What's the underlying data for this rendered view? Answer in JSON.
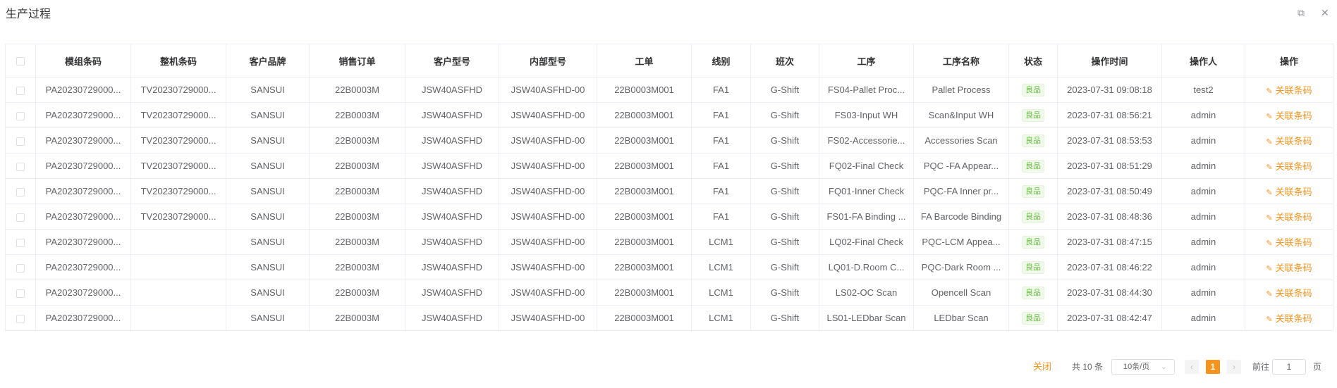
{
  "title": "生产过程",
  "window": {
    "restore_icon": "restore-icon",
    "close_icon": "close-icon"
  },
  "columns": [
    "",
    "模组条码",
    "整机条码",
    "客户品牌",
    "销售订单",
    "客户型号",
    "内部型号",
    "工单",
    "线别",
    "班次",
    "工序",
    "工序名称",
    "状态",
    "操作时间",
    "操作人",
    "操作"
  ],
  "rows": [
    [
      "PA20230729000...",
      "TV20230729000...",
      "SANSUI",
      "22B0003M",
      "JSW40ASFHD",
      "JSW40ASFHD-00",
      "22B0003M001",
      "FA1",
      "G-Shift",
      "FS04-Pallet Proc...",
      "Pallet Process",
      "良品",
      "2023-07-31 09:08:18",
      "test2",
      "关联条码"
    ],
    [
      "PA20230729000...",
      "TV20230729000...",
      "SANSUI",
      "22B0003M",
      "JSW40ASFHD",
      "JSW40ASFHD-00",
      "22B0003M001",
      "FA1",
      "G-Shift",
      "FS03-Input WH",
      "Scan&Input WH",
      "良品",
      "2023-07-31 08:56:21",
      "admin",
      "关联条码"
    ],
    [
      "PA20230729000...",
      "TV20230729000...",
      "SANSUI",
      "22B0003M",
      "JSW40ASFHD",
      "JSW40ASFHD-00",
      "22B0003M001",
      "FA1",
      "G-Shift",
      "FS02-Accessorie...",
      "Accessories Scan",
      "良品",
      "2023-07-31 08:53:53",
      "admin",
      "关联条码"
    ],
    [
      "PA20230729000...",
      "TV20230729000...",
      "SANSUI",
      "22B0003M",
      "JSW40ASFHD",
      "JSW40ASFHD-00",
      "22B0003M001",
      "FA1",
      "G-Shift",
      "FQ02-Final Check",
      "PQC -FA Appear...",
      "良品",
      "2023-07-31 08:51:29",
      "admin",
      "关联条码"
    ],
    [
      "PA20230729000...",
      "TV20230729000...",
      "SANSUI",
      "22B0003M",
      "JSW40ASFHD",
      "JSW40ASFHD-00",
      "22B0003M001",
      "FA1",
      "G-Shift",
      "FQ01-Inner Check",
      "PQC-FA Inner pr...",
      "良品",
      "2023-07-31 08:50:49",
      "admin",
      "关联条码"
    ],
    [
      "PA20230729000...",
      "TV20230729000...",
      "SANSUI",
      "22B0003M",
      "JSW40ASFHD",
      "JSW40ASFHD-00",
      "22B0003M001",
      "FA1",
      "G-Shift",
      "FS01-FA Binding ...",
      "FA Barcode Binding",
      "良品",
      "2023-07-31 08:48:36",
      "admin",
      "关联条码"
    ],
    [
      "PA20230729000...",
      "",
      "SANSUI",
      "22B0003M",
      "JSW40ASFHD",
      "JSW40ASFHD-00",
      "22B0003M001",
      "LCM1",
      "G-Shift",
      "LQ02-Final Check",
      "PQC-LCM Appea...",
      "良品",
      "2023-07-31 08:47:15",
      "admin",
      "关联条码"
    ],
    [
      "PA20230729000...",
      "",
      "SANSUI",
      "22B0003M",
      "JSW40ASFHD",
      "JSW40ASFHD-00",
      "22B0003M001",
      "LCM1",
      "G-Shift",
      "LQ01-D.Room C...",
      "PQC-Dark Room ...",
      "良品",
      "2023-07-31 08:46:22",
      "admin",
      "关联条码"
    ],
    [
      "PA20230729000...",
      "",
      "SANSUI",
      "22B0003M",
      "JSW40ASFHD",
      "JSW40ASFHD-00",
      "22B0003M001",
      "LCM1",
      "G-Shift",
      "LS02-OC Scan",
      "Opencell Scan",
      "良品",
      "2023-07-31 08:44:30",
      "admin",
      "关联条码"
    ],
    [
      "PA20230729000...",
      "",
      "SANSUI",
      "22B0003M",
      "JSW40ASFHD",
      "JSW40ASFHD-00",
      "22B0003M001",
      "LCM1",
      "G-Shift",
      "LS01-LEDbar Scan",
      "LEDbar Scan",
      "良品",
      "2023-07-31 08:42:47",
      "admin",
      "关联条码"
    ]
  ],
  "pager": {
    "close": "关闭",
    "total": "共 10 条",
    "page_size": "10条/页",
    "current": "1",
    "goto": "前往",
    "goto_value": "1",
    "page_unit": "页"
  },
  "colors": {
    "accent": "#f7941d",
    "success": "#67c23a"
  }
}
